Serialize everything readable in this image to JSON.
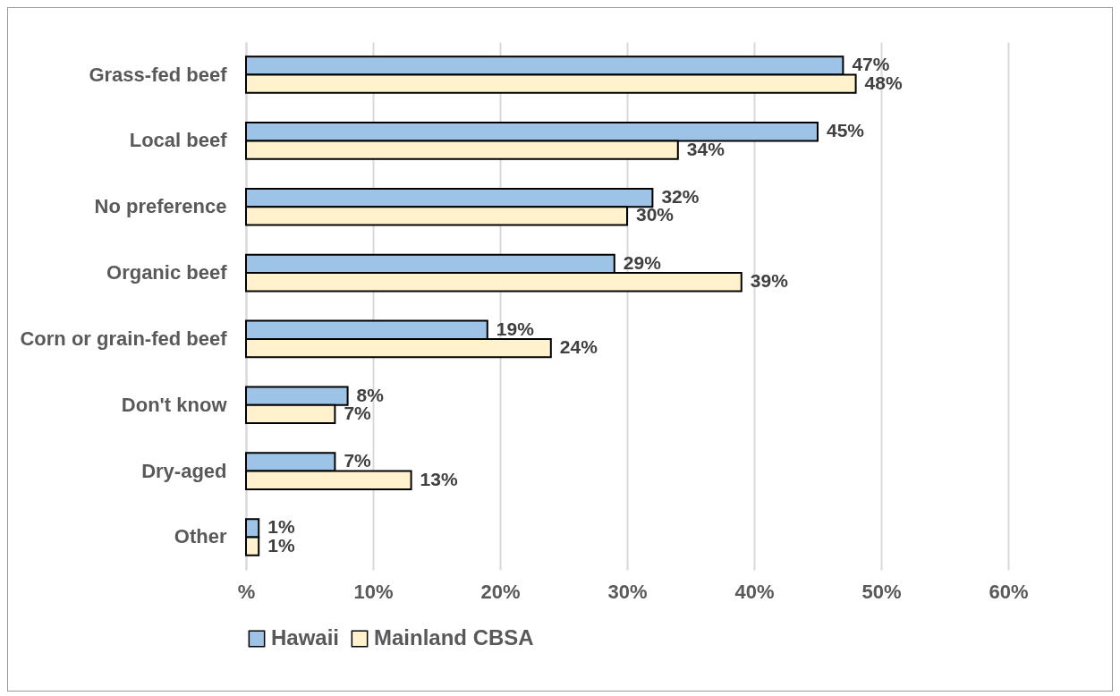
{
  "chart_data": {
    "type": "bar",
    "orientation": "horizontal",
    "categories": [
      "Grass-fed beef",
      "Local beef",
      "No preference",
      "Organic beef",
      "Corn or grain-fed beef",
      "Don't know",
      "Dry-aged",
      "Other"
    ],
    "series": [
      {
        "name": "Hawaii",
        "color": "#9dc3e6",
        "values": [
          47,
          45,
          32,
          29,
          19,
          8,
          7,
          1
        ],
        "value_labels": [
          "47%",
          "45%",
          "32%",
          "29%",
          "19%",
          "8%",
          "7%",
          "1%"
        ]
      },
      {
        "name": "Mainland CBSA",
        "color": "#fff2cc",
        "values": [
          48,
          34,
          30,
          39,
          24,
          7,
          13,
          1
        ],
        "value_labels": [
          "48%",
          "34%",
          "30%",
          "39%",
          "24%",
          "7%",
          "13%",
          "1%"
        ]
      }
    ],
    "xlim": [
      0,
      60
    ],
    "xticks": [
      {
        "value": 0,
        "label": "%"
      },
      {
        "value": 10,
        "label": "10%"
      },
      {
        "value": 20,
        "label": "20%"
      },
      {
        "value": 30,
        "label": "30%"
      },
      {
        "value": 40,
        "label": "40%"
      },
      {
        "value": 50,
        "label": "50%"
      },
      {
        "value": 60,
        "label": "60%"
      }
    ],
    "grid": "x",
    "legend": "bottom"
  }
}
